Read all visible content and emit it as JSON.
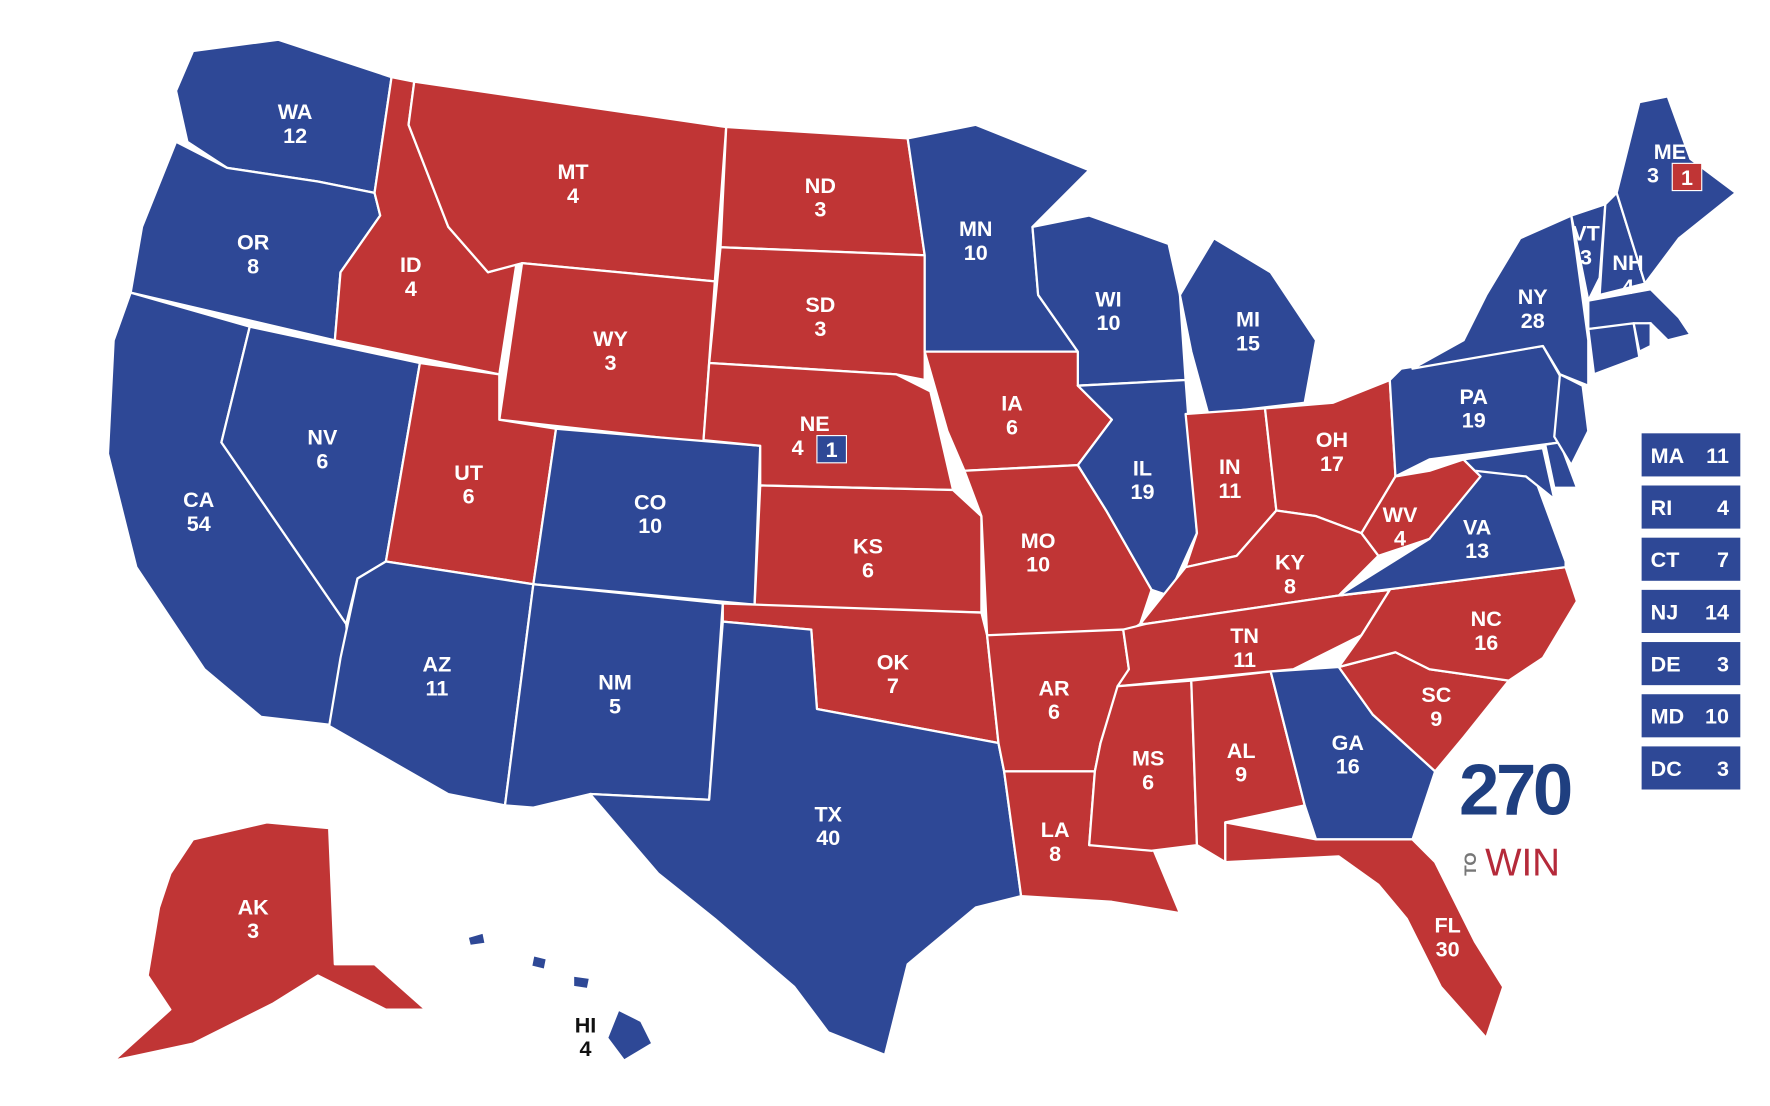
{
  "colors": {
    "dem": "#2e4896",
    "rep": "#c03535",
    "border": "#ffffff"
  },
  "states": [
    {
      "abbr": "WA",
      "ev": "12",
      "party": "dem"
    },
    {
      "abbr": "OR",
      "ev": "8",
      "party": "dem"
    },
    {
      "abbr": "CA",
      "ev": "54",
      "party": "dem"
    },
    {
      "abbr": "NV",
      "ev": "6",
      "party": "dem"
    },
    {
      "abbr": "ID",
      "ev": "4",
      "party": "rep"
    },
    {
      "abbr": "MT",
      "ev": "4",
      "party": "rep"
    },
    {
      "abbr": "WY",
      "ev": "3",
      "party": "rep"
    },
    {
      "abbr": "UT",
      "ev": "6",
      "party": "rep"
    },
    {
      "abbr": "CO",
      "ev": "10",
      "party": "dem"
    },
    {
      "abbr": "AZ",
      "ev": "11",
      "party": "dem"
    },
    {
      "abbr": "NM",
      "ev": "5",
      "party": "dem"
    },
    {
      "abbr": "ND",
      "ev": "3",
      "party": "rep"
    },
    {
      "abbr": "SD",
      "ev": "3",
      "party": "rep"
    },
    {
      "abbr": "NE",
      "ev": "4",
      "party": "rep"
    },
    {
      "abbr": "KS",
      "ev": "6",
      "party": "rep"
    },
    {
      "abbr": "OK",
      "ev": "7",
      "party": "rep"
    },
    {
      "abbr": "TX",
      "ev": "40",
      "party": "dem"
    },
    {
      "abbr": "MN",
      "ev": "10",
      "party": "dem"
    },
    {
      "abbr": "IA",
      "ev": "6",
      "party": "rep"
    },
    {
      "abbr": "MO",
      "ev": "10",
      "party": "rep"
    },
    {
      "abbr": "AR",
      "ev": "6",
      "party": "rep"
    },
    {
      "abbr": "LA",
      "ev": "8",
      "party": "rep"
    },
    {
      "abbr": "WI",
      "ev": "10",
      "party": "dem"
    },
    {
      "abbr": "IL",
      "ev": "19",
      "party": "dem"
    },
    {
      "abbr": "MI",
      "ev": "15",
      "party": "dem"
    },
    {
      "abbr": "IN",
      "ev": "11",
      "party": "rep"
    },
    {
      "abbr": "OH",
      "ev": "17",
      "party": "rep"
    },
    {
      "abbr": "KY",
      "ev": "8",
      "party": "rep"
    },
    {
      "abbr": "TN",
      "ev": "11",
      "party": "rep"
    },
    {
      "abbr": "MS",
      "ev": "6",
      "party": "rep"
    },
    {
      "abbr": "AL",
      "ev": "9",
      "party": "rep"
    },
    {
      "abbr": "GA",
      "ev": "16",
      "party": "dem"
    },
    {
      "abbr": "FL",
      "ev": "30",
      "party": "rep"
    },
    {
      "abbr": "SC",
      "ev": "9",
      "party": "rep"
    },
    {
      "abbr": "NC",
      "ev": "16",
      "party": "rep"
    },
    {
      "abbr": "VA",
      "ev": "13",
      "party": "dem"
    },
    {
      "abbr": "WV",
      "ev": "4",
      "party": "rep"
    },
    {
      "abbr": "PA",
      "ev": "19",
      "party": "dem"
    },
    {
      "abbr": "MD",
      "ev": "",
      "party": "dem"
    },
    {
      "abbr": "DE",
      "ev": "",
      "party": "dem"
    },
    {
      "abbr": "NJ",
      "ev": "",
      "party": "dem"
    },
    {
      "abbr": "NY",
      "ev": "28",
      "party": "dem"
    },
    {
      "abbr": "VT",
      "ev": "3",
      "party": "dem"
    },
    {
      "abbr": "NH",
      "ev": "4",
      "party": "dem"
    },
    {
      "abbr": "ME",
      "ev": "3",
      "party": "dem"
    },
    {
      "abbr": "MA",
      "ev": "",
      "party": "dem"
    },
    {
      "abbr": "CT",
      "ev": "",
      "party": "dem"
    },
    {
      "abbr": "RI",
      "ev": "",
      "party": "dem"
    },
    {
      "abbr": "AK",
      "ev": "3",
      "party": "rep"
    },
    {
      "abbr": "HI",
      "ev": "4",
      "party": "dem"
    }
  ],
  "district_splits": [
    {
      "state": "NE",
      "ev": "1",
      "party": "dem"
    },
    {
      "state": "ME",
      "ev": "1",
      "party": "rep"
    }
  ],
  "small_state_boxes": [
    {
      "abbr": "MA",
      "ev": "11",
      "party": "dem"
    },
    {
      "abbr": "RI",
      "ev": "4",
      "party": "dem"
    },
    {
      "abbr": "CT",
      "ev": "7",
      "party": "dem"
    },
    {
      "abbr": "NJ",
      "ev": "14",
      "party": "dem"
    },
    {
      "abbr": "DE",
      "ev": "3",
      "party": "dem"
    },
    {
      "abbr": "MD",
      "ev": "10",
      "party": "dem"
    },
    {
      "abbr": "DC",
      "ev": "3",
      "party": "dem"
    }
  ],
  "logo": {
    "number": "270",
    "to": "TO",
    "win": "WIN"
  }
}
